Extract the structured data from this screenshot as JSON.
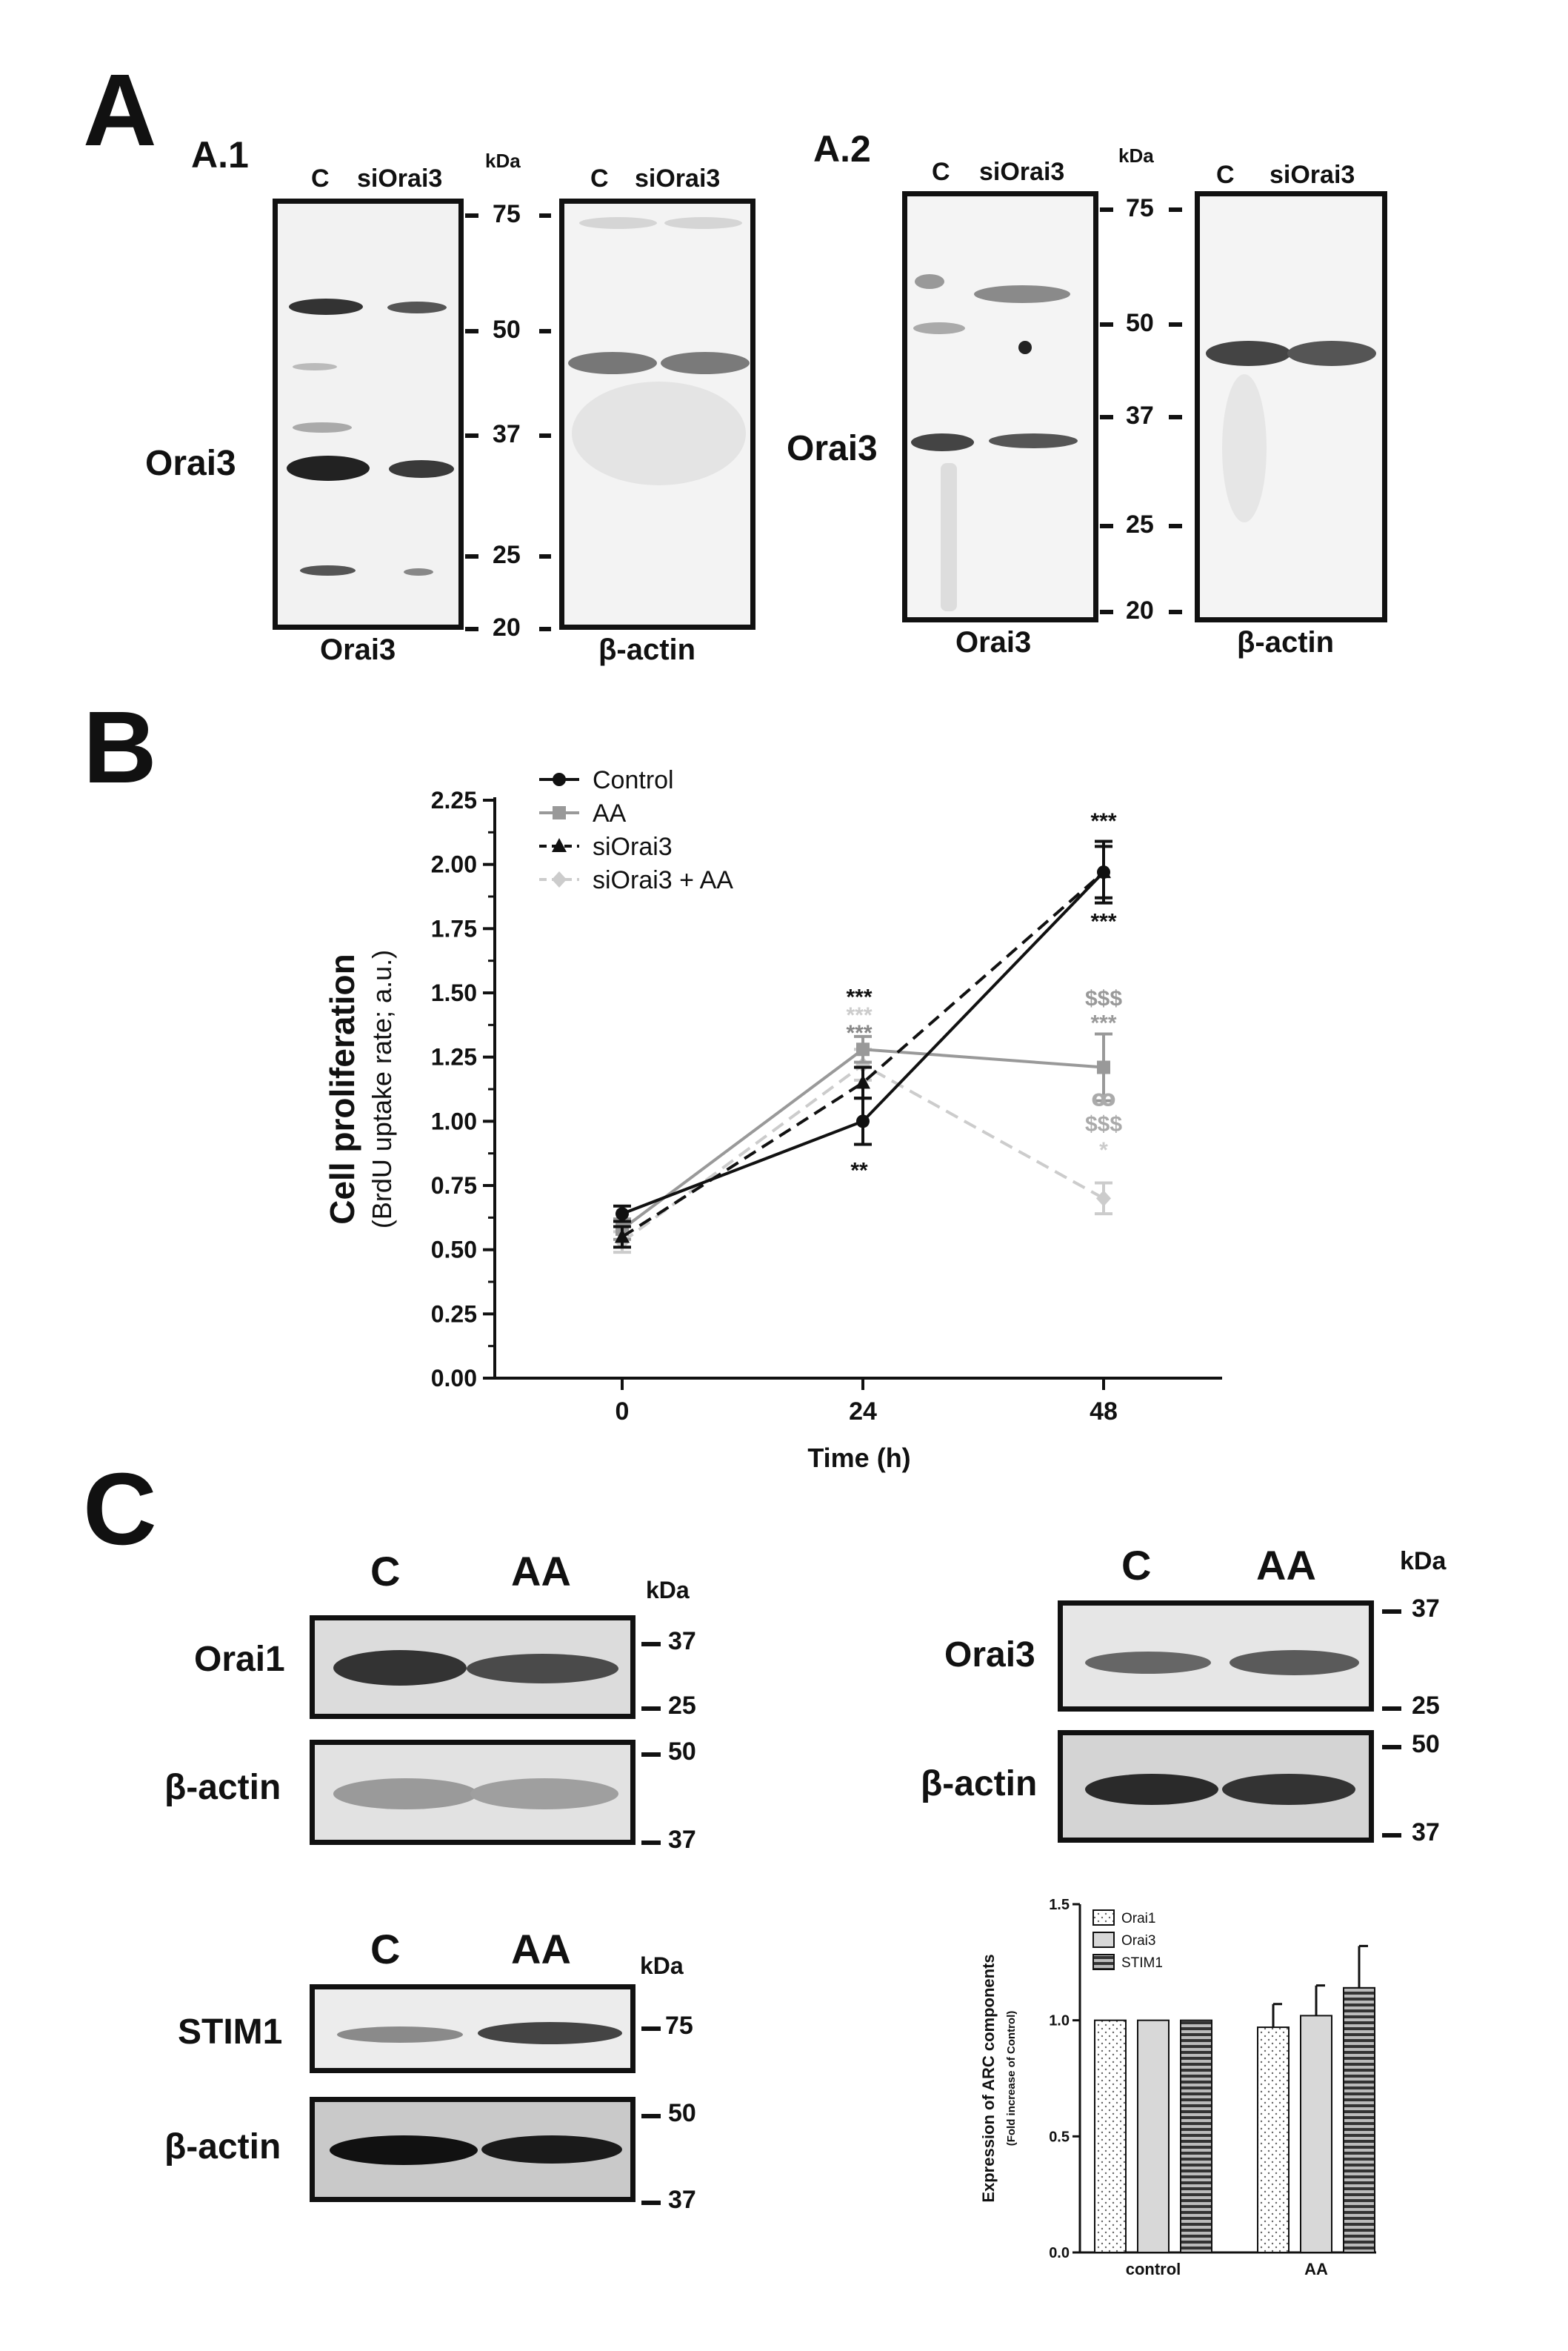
{
  "panel_letters": {
    "a": "A",
    "b": "B",
    "c": "C"
  },
  "panel_a": {
    "a1": {
      "label": "A.1",
      "lanes_left": [
        "C",
        "siOrai3"
      ],
      "lanes_right": [
        "C",
        "siOrai3"
      ],
      "kda_label": "kDa",
      "mw_markers": [
        "75",
        "50",
        "37",
        "25",
        "20"
      ],
      "row_label": "Orai3",
      "bottom_left": "Orai3",
      "bottom_right": "β-actin"
    },
    "a2": {
      "label": "A.2",
      "lanes_left": [
        "C",
        "siOrai3"
      ],
      "lanes_right": [
        "C",
        "siOrai3"
      ],
      "kda_label": "kDa",
      "mw_markers": [
        "75",
        "50",
        "37",
        "25",
        "20"
      ],
      "row_label": "Orai3",
      "bottom_left": "Orai3",
      "bottom_right": "β-actin"
    }
  },
  "chart_data": [
    {
      "type": "line",
      "title": "",
      "xlabel": "Time (h)",
      "ylabel": "Cell proliferation",
      "ylabel_sub": "(BrdU uptake rate; a.u.)",
      "x": [
        0,
        24,
        48
      ],
      "ylim": [
        0,
        2.25
      ],
      "yticks": [
        "0.00",
        "0.25",
        "0.50",
        "0.75",
        "1.00",
        "1.25",
        "1.50",
        "1.75",
        "2.00",
        "2.25"
      ],
      "xticks": [
        "0",
        "24",
        "48"
      ],
      "legend_position": "top-left",
      "series": [
        {
          "name": "Control",
          "values": [
            0.64,
            1.0,
            1.97
          ],
          "errors": [
            0.03,
            0.09,
            0.12
          ],
          "color": "#111111",
          "dash": "solid",
          "marker": "circle"
        },
        {
          "name": "AA",
          "values": [
            0.58,
            1.28,
            1.21
          ],
          "errors": [
            0.04,
            0.05,
            0.13
          ],
          "color": "#999999",
          "dash": "solid",
          "marker": "square"
        },
        {
          "name": "siOrai3",
          "values": [
            0.55,
            1.15,
            1.97
          ],
          "errors": [
            0.04,
            0.06,
            0.1
          ],
          "color": "#111111",
          "dash": "dashed",
          "marker": "triangle"
        },
        {
          "name": "siOrai3 + AA",
          "values": [
            0.53,
            1.22,
            0.7
          ],
          "errors": [
            0.04,
            0.06,
            0.06
          ],
          "color": "#cccccc",
          "dash": "dashed",
          "marker": "diamond"
        }
      ],
      "annotations": [
        {
          "text": "***",
          "x": 48,
          "pos": "above-high",
          "color": "#111111"
        },
        {
          "text": "***",
          "x": 48,
          "pos": "below-high",
          "color": "#111111"
        },
        {
          "text": "***",
          "x": 24,
          "pos": "stack-1",
          "color": "#111111"
        },
        {
          "text": "***",
          "x": 24,
          "pos": "stack-2",
          "color": "#cccccc"
        },
        {
          "text": "***",
          "x": 24,
          "pos": "stack-3",
          "color": "#888888"
        },
        {
          "text": "**",
          "x": 24,
          "pos": "below-low",
          "color": "#111111"
        },
        {
          "text": "$$$",
          "x": 48,
          "pos": "aa-1",
          "color": "#999999"
        },
        {
          "text": "***",
          "x": 48,
          "pos": "aa-2",
          "color": "#999999"
        },
        {
          "text": "ꝏ",
          "x": 48,
          "pos": "si-1",
          "color": "#aaaaaa"
        },
        {
          "text": "$$$",
          "x": 48,
          "pos": "si-2",
          "color": "#aaaaaa"
        },
        {
          "text": "*",
          "x": 48,
          "pos": "si-3",
          "color": "#cccccc"
        }
      ]
    },
    {
      "type": "bar",
      "title": "",
      "xlabel": "",
      "ylabel": "Expression of ARC components",
      "ylabel_sub": "(Fold increase of Control)",
      "categories": [
        "control",
        "AA"
      ],
      "ylim": [
        0,
        1.5
      ],
      "yticks": [
        "0.0",
        "0.5",
        "1.0",
        "1.5"
      ],
      "legend_position": "top-left",
      "series": [
        {
          "name": "Orai1",
          "values": [
            1.0,
            0.97
          ],
          "errors": [
            0,
            0.1
          ],
          "pattern": "dots"
        },
        {
          "name": "Orai3",
          "values": [
            1.0,
            1.02
          ],
          "errors": [
            0,
            0.13
          ],
          "pattern": "grey"
        },
        {
          "name": "STIM1",
          "values": [
            1.0,
            1.14
          ],
          "errors": [
            0,
            0.18
          ],
          "pattern": "stripes"
        }
      ]
    }
  ],
  "panel_c": {
    "orai1": {
      "lanes": [
        "C",
        "AA"
      ],
      "kda_label": "kDa",
      "row_label": "Orai1",
      "mw_markers": [
        "37",
        "25"
      ],
      "actin_label": "β-actin",
      "actin_mw": [
        "50",
        "37"
      ]
    },
    "orai3": {
      "lanes": [
        "C",
        "AA"
      ],
      "kda_label": "kDa",
      "row_label": "Orai3",
      "mw_markers": [
        "37",
        "25"
      ],
      "actin_label": "β-actin",
      "actin_mw": [
        "50",
        "37"
      ]
    },
    "stim1": {
      "lanes": [
        "C",
        "AA"
      ],
      "kda_label": "kDa",
      "row_label": "STIM1",
      "mw_markers": [
        "75"
      ],
      "actin_label": "β-actin",
      "actin_mw": [
        "50",
        "37"
      ]
    }
  }
}
